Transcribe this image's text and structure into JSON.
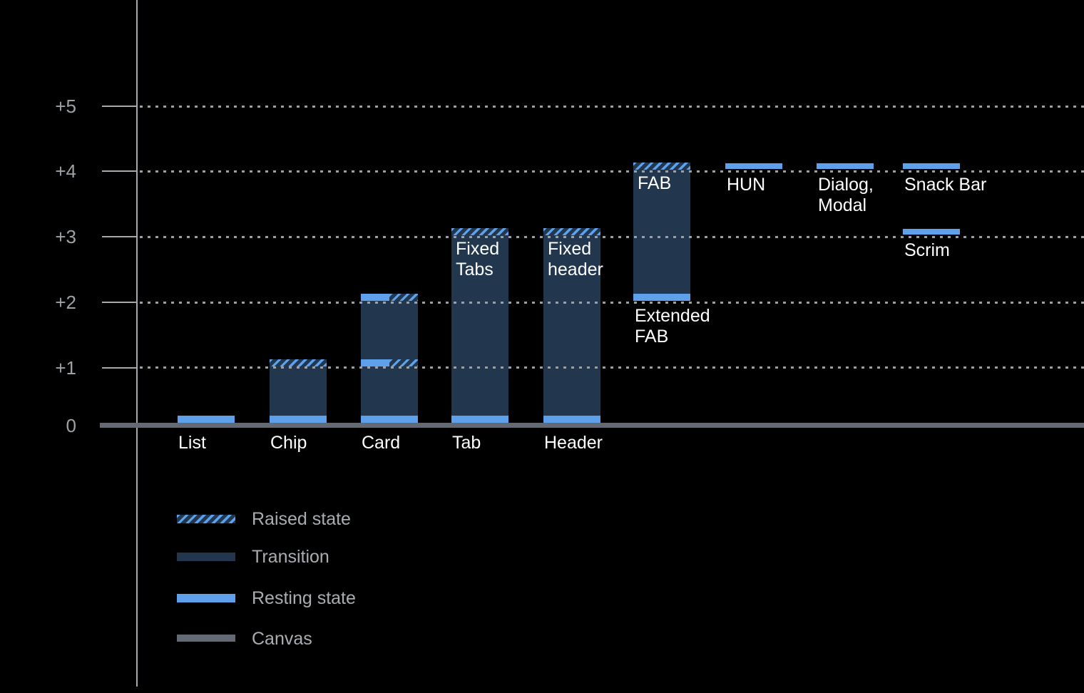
{
  "chart_data": {
    "type": "bar",
    "y_axis": {
      "tick_labels": [
        "0",
        "+1",
        "+2",
        "+3",
        "+4",
        "+5"
      ],
      "tick_values": [
        0,
        1,
        2,
        3,
        4,
        5
      ],
      "ylim": [
        0,
        5.5
      ],
      "grid": "dotted"
    },
    "components": [
      {
        "id": "list",
        "column": 0,
        "resting": 0,
        "label": {
          "pos": "baseline",
          "text": [
            "List"
          ]
        }
      },
      {
        "id": "chip",
        "column": 1,
        "resting": 0,
        "raised": 1,
        "transition": [
          0,
          1
        ],
        "label": {
          "pos": "baseline",
          "text": [
            "Chip"
          ]
        }
      },
      {
        "id": "card",
        "column": 2,
        "resting": 0,
        "transition": [
          0,
          2
        ],
        "split_raised_levels": [
          1,
          2
        ],
        "label": {
          "pos": "baseline",
          "text": [
            "Card"
          ]
        }
      },
      {
        "id": "tab",
        "column": 3,
        "resting": 0,
        "raised": 3,
        "transition": [
          0,
          3
        ],
        "label": {
          "pos": "baseline",
          "text": [
            "Tab"
          ]
        },
        "inner": {
          "text": [
            "Fixed",
            "Tabs"
          ]
        }
      },
      {
        "id": "header",
        "column": 4,
        "resting": 0,
        "raised": 3,
        "transition": [
          0,
          3
        ],
        "label": {
          "pos": "baseline",
          "text": [
            "Header"
          ]
        },
        "inner": {
          "text": [
            "Fixed",
            "header"
          ]
        }
      },
      {
        "id": "fab",
        "column": 5,
        "resting": 2,
        "raised": 4,
        "transition": [
          2,
          4
        ],
        "inner": {
          "text": [
            "FAB"
          ]
        },
        "below": {
          "level": 2,
          "text": [
            "Extended",
            "FAB"
          ]
        }
      },
      {
        "id": "hun",
        "column": 6,
        "resting": 4,
        "floating": true,
        "below": {
          "level": 4,
          "text": [
            "HUN"
          ]
        }
      },
      {
        "id": "dialog-modal",
        "column": 7,
        "resting": 4,
        "floating": true,
        "below": {
          "level": 4,
          "text": [
            "Dialog,",
            "Modal"
          ]
        }
      },
      {
        "id": "snack-bar",
        "column": 8,
        "resting": 4,
        "floating": true,
        "below": {
          "level": 4,
          "text": [
            "Snack Bar"
          ]
        }
      },
      {
        "id": "scrim",
        "column": 8,
        "resting": 3,
        "floating": true,
        "below": {
          "level": 3,
          "text": [
            "Scrim"
          ]
        }
      }
    ],
    "legend": {
      "position": "bottom-left",
      "items": [
        {
          "label": "Raised state",
          "swatch": "raised"
        },
        {
          "label": "Transition",
          "swatch": "transition"
        },
        {
          "label": "Resting state",
          "swatch": "resting"
        },
        {
          "label": "Canvas",
          "swatch": "canvas"
        }
      ]
    },
    "colors": {
      "background": "#000000",
      "resting": "#5FA0EA",
      "transition": "#22374D",
      "canvas": "#636A74",
      "grid": "#9BA0A5",
      "axis_line": "#A5A9AE",
      "axis_text": "#9DA2A6",
      "legend_text": "#A9ADB2",
      "bar_label_text": "#FFFFFF"
    }
  }
}
